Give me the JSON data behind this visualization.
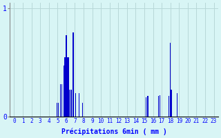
{
  "xlabel": "Précipitations 6min ( mm )",
  "background_color": "#d8f5f5",
  "bar_color": "#0000cc",
  "grid_color": "#b8d8d8",
  "ylim": [
    0,
    1.05
  ],
  "xlim": [
    -0.5,
    23.5
  ],
  "yticks": [
    0,
    1
  ],
  "xticks": [
    0,
    1,
    2,
    3,
    4,
    5,
    6,
    7,
    8,
    9,
    10,
    11,
    12,
    13,
    14,
    15,
    16,
    17,
    18,
    19,
    20,
    21,
    22,
    23
  ],
  "bars": [
    [
      4.9,
      0.13
    ],
    [
      5.1,
      0.13
    ],
    [
      5.3,
      0.3
    ],
    [
      5.5,
      0.3
    ],
    [
      5.7,
      0.47
    ],
    [
      5.75,
      0.47
    ],
    [
      5.85,
      0.55
    ],
    [
      5.9,
      0.55
    ],
    [
      6.0,
      0.75
    ],
    [
      6.05,
      0.75
    ],
    [
      6.1,
      0.55
    ],
    [
      6.2,
      0.55
    ],
    [
      6.3,
      0.55
    ],
    [
      6.4,
      0.25
    ],
    [
      6.5,
      0.25
    ],
    [
      6.6,
      0.25
    ],
    [
      6.8,
      0.78
    ],
    [
      6.85,
      0.78
    ],
    [
      7.1,
      0.22
    ],
    [
      7.5,
      0.22
    ],
    [
      7.9,
      0.13
    ],
    [
      15.2,
      0.18
    ],
    [
      15.4,
      0.19
    ],
    [
      16.6,
      0.19
    ],
    [
      16.8,
      0.2
    ],
    [
      17.8,
      0.19
    ],
    [
      18.0,
      0.68
    ],
    [
      18.1,
      0.25
    ],
    [
      18.8,
      0.22
    ]
  ]
}
